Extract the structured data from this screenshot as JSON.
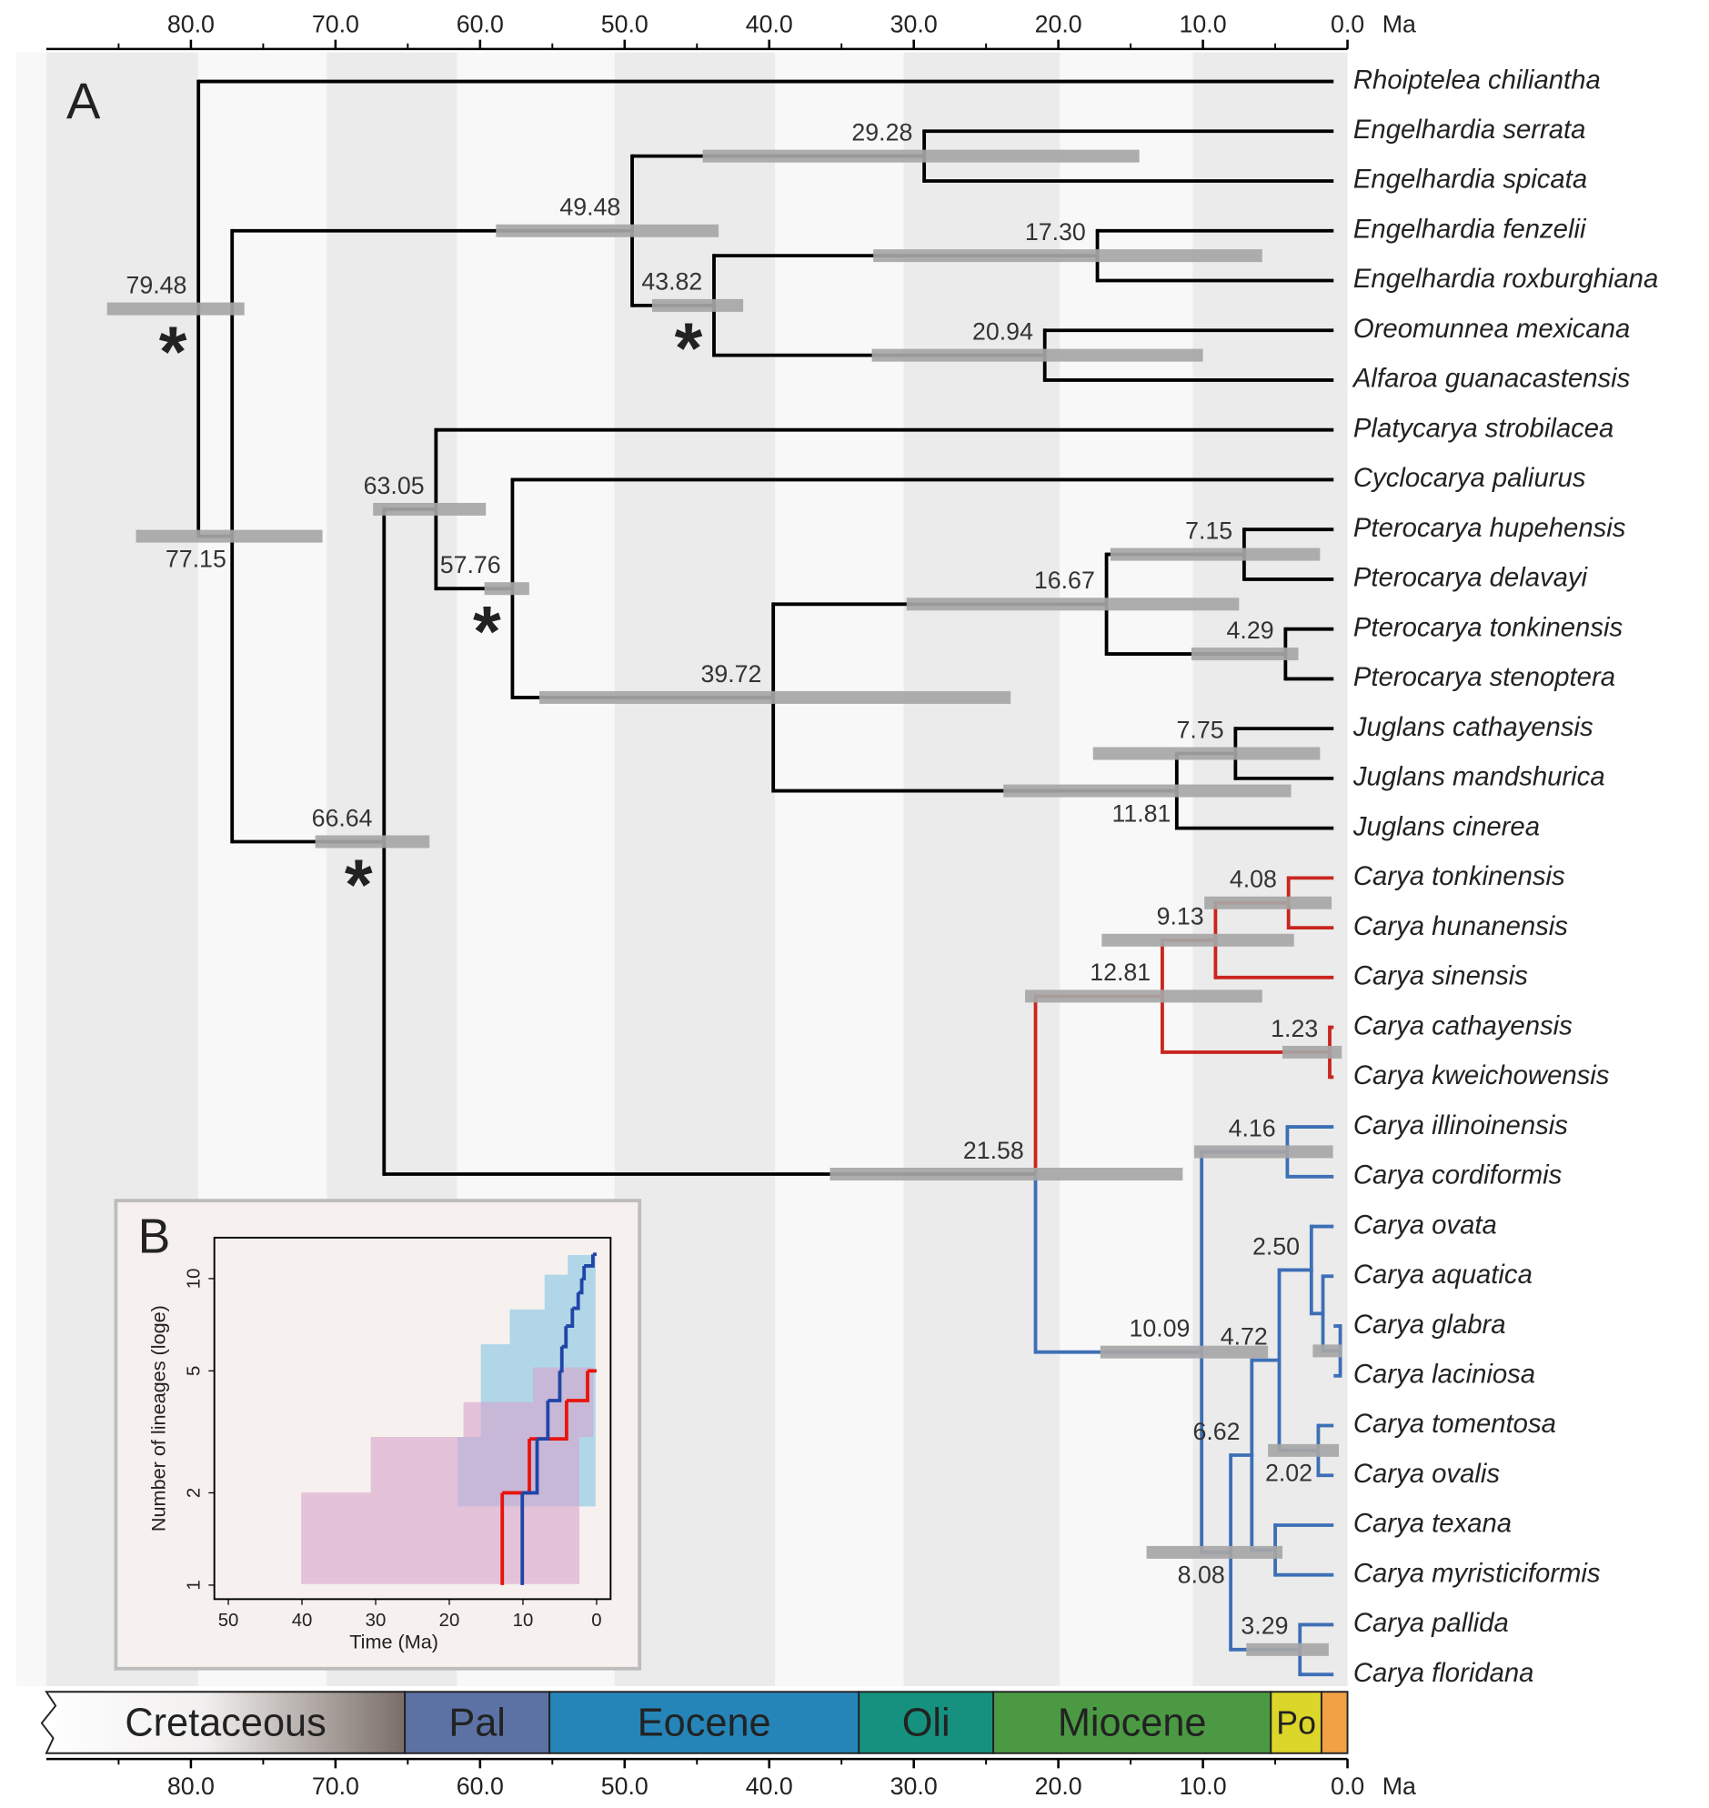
{
  "panel_a": {
    "label": "A",
    "time_axis": {
      "unit": "Ma",
      "xlim": [
        90,
        0
      ],
      "ticks": [
        {
          "value": 80,
          "label": "80.0"
        },
        {
          "value": 70,
          "label": "70.0"
        },
        {
          "value": 60,
          "label": "60.0"
        },
        {
          "value": 50,
          "label": "50.0"
        },
        {
          "value": 40,
          "label": "40.0"
        },
        {
          "value": 30,
          "label": "30.0"
        },
        {
          "value": 20,
          "label": "20.0"
        },
        {
          "value": 10,
          "label": "10.0"
        },
        {
          "value": 0,
          "label": "0.0"
        }
      ],
      "minor_ticks": [
        85,
        75,
        65,
        55,
        45,
        35,
        25,
        15,
        5
      ]
    },
    "bands": [
      [
        90,
        79.5
      ],
      [
        70.6,
        61.6
      ],
      [
        50.7,
        39.6
      ],
      [
        30.7,
        19.9
      ],
      [
        10.7,
        0
      ]
    ],
    "band_color": "#ebebeb",
    "hpd_color": "#a6a6a6",
    "periods": [
      {
        "name": "Cretaceous",
        "start": 90,
        "end": 65.2,
        "color": "#7a6e67"
      },
      {
        "name": "Pal",
        "start": 65.2,
        "end": 55.2,
        "color": "#5c72a4"
      },
      {
        "name": "Eocene",
        "start": 55.2,
        "end": 33.8,
        "color": "#2585b9"
      },
      {
        "name": "Oli",
        "start": 33.8,
        "end": 24.5,
        "color": "#16917f"
      },
      {
        "name": "Miocene",
        "start": 24.5,
        "end": 5.3,
        "color": "#4b9a43"
      },
      {
        "name": "Po",
        "start": 5.3,
        "end": 1.8,
        "color": "#dcd62a"
      },
      {
        "name": null,
        "start": 1.8,
        "end": 0,
        "color": "#f2a145"
      }
    ],
    "tree": {
      "age": 79.48,
      "label": "79.48",
      "hpd": [
        85.8,
        76.3
      ],
      "marker": "*",
      "color": "#000000",
      "children": [
        "Rhoiptelea chiliantha",
        {
          "age": 77.15,
          "label": "77.15",
          "hpd": [
            83.8,
            70.9
          ],
          "children": [
            {
              "age": 49.48,
              "label": "49.48",
              "hpd": [
                58.9,
                43.5
              ],
              "children": [
                {
                  "age": 29.28,
                  "label": "29.28",
                  "hpd": [
                    44.6,
                    14.4
                  ],
                  "children": [
                    "Engelhardia serrata",
                    "Engelhardia spicata"
                  ]
                },
                {
                  "age": 43.82,
                  "label": "43.82",
                  "hpd": [
                    48.1,
                    41.8
                  ],
                  "marker": "*",
                  "children": [
                    {
                      "age": 17.3,
                      "label": "17.30",
                      "hpd": [
                        32.8,
                        5.9
                      ],
                      "children": [
                        "Engelhardia fenzelii",
                        "Engelhardia roxburghiana"
                      ]
                    },
                    {
                      "age": 20.94,
                      "label": "20.94",
                      "hpd": [
                        32.9,
                        10.0
                      ],
                      "children": [
                        "Oreomunnea mexicana",
                        "Alfaroa guanacastensis"
                      ]
                    }
                  ]
                }
              ]
            },
            {
              "age": 66.64,
              "label": "66.64",
              "hpd": [
                71.4,
                63.5
              ],
              "marker": "*",
              "children": [
                {
                  "age": 63.05,
                  "label": "63.05",
                  "hpd": [
                    67.4,
                    59.6
                  ],
                  "children": [
                    "Platycarya strobilacea",
                    {
                      "age": 57.76,
                      "label": "57.76",
                      "hpd": [
                        59.7,
                        56.6
                      ],
                      "marker": "*",
                      "children": [
                        "Cyclocarya paliurus",
                        {
                          "age": 39.72,
                          "label": "39.72",
                          "hpd": [
                            55.9,
                            23.3
                          ],
                          "children": [
                            {
                              "age": 16.67,
                              "label": "16.67",
                              "hpd": [
                                30.5,
                                7.5
                              ],
                              "children": [
                                {
                                  "age": 7.15,
                                  "label": "7.15",
                                  "hpd": [
                                    16.4,
                                    1.9
                                  ],
                                  "children": [
                                    "Pterocarya hupehensis",
                                    "Pterocarya delavayi"
                                  ]
                                },
                                {
                                  "age": 4.29,
                                  "label": "4.29",
                                  "hpd": [
                                    10.8,
                                    3.4
                                  ],
                                  "children": [
                                    "Pterocarya tonkinensis",
                                    "Pterocarya stenoptera"
                                  ]
                                }
                              ]
                            },
                            {
                              "age": 11.81,
                              "label": "11.81",
                              "hpd": [
                                23.8,
                                3.9
                              ],
                              "children": [
                                {
                                  "age": 7.75,
                                  "label": "7.75",
                                  "hpd": [
                                    17.6,
                                    1.9
                                  ],
                                  "children": [
                                    "Juglans cathayensis",
                                    "Juglans mandshurica"
                                  ]
                                },
                                "Juglans cinerea"
                              ]
                            }
                          ]
                        }
                      ]
                    }
                  ]
                },
                {
                  "age": 21.58,
                  "label": "21.58",
                  "hpd": [
                    35.8,
                    11.4
                  ],
                  "children": [
                    {
                      "age": 12.81,
                      "label": "12.81",
                      "hpd": [
                        22.3,
                        5.9
                      ],
                      "color": "#c8261e",
                      "children": [
                        {
                          "age": 9.13,
                          "label": "9.13",
                          "hpd": [
                            17.0,
                            3.7
                          ],
                          "children": [
                            {
                              "age": 4.08,
                              "label": "4.08",
                              "hpd": [
                                9.9,
                                1.1
                              ],
                              "children": [
                                "Carya tonkinensis",
                                "Carya hunanensis"
                              ]
                            },
                            "Carya sinensis"
                          ]
                        },
                        {
                          "age": 1.23,
                          "label": "1.23",
                          "hpd": [
                            4.5,
                            0.4
                          ],
                          "children": [
                            "Carya cathayensis",
                            "Carya kweichowensis"
                          ]
                        }
                      ]
                    },
                    {
                      "age": 10.09,
                      "label": "10.09",
                      "hpd": [
                        17.1,
                        5.5
                      ],
                      "color": "#3d6fb6",
                      "children": [
                        {
                          "age": 4.16,
                          "label": "4.16",
                          "hpd": [
                            10.6,
                            1.0
                          ],
                          "children": [
                            "Carya illinoinensis",
                            "Carya cordiformis"
                          ]
                        },
                        {
                          "age": 8.08,
                          "label": "8.08",
                          "hpd": [
                            13.9,
                            4.5
                          ],
                          "children": [
                            {
                              "age": 6.62,
                              "label": "6.62",
                              "children": [
                                {
                                  "age": 4.72,
                                  "label": "4.72",
                                  "children": [
                                    {
                                      "age": 2.5,
                                      "label": "2.50",
                                      "children": [
                                        "Carya ovata",
                                        {
                                          "age": 1.7,
                                          "children": [
                                            "Carya aquatica",
                                            {
                                              "age": 0.5,
                                              "hpd": [
                                                2.4,
                                                0.4
                                              ],
                                              "children": [
                                                "Carya glabra",
                                                "Carya laciniosa"
                                              ]
                                            }
                                          ]
                                        }
                                      ]
                                    },
                                    {
                                      "age": 2.02,
                                      "label": "2.02",
                                      "hpd": [
                                        5.5,
                                        0.6
                                      ],
                                      "children": [
                                        "Carya tomentosa",
                                        "Carya ovalis"
                                      ]
                                    }
                                  ]
                                },
                                {
                                  "age": 5.0,
                                  "children": [
                                    "Carya texana",
                                    "Carya myristiciformis"
                                  ]
                                }
                              ]
                            },
                            {
                              "age": 3.29,
                              "label": "3.29",
                              "hpd": [
                                7.0,
                                1.3
                              ],
                              "children": [
                                "Carya pallida",
                                "Carya floridana"
                              ]
                            }
                          ]
                        }
                      ]
                    }
                  ]
                }
              ]
            }
          ]
        }
      ]
    }
  },
  "panel_b": {
    "label": "B",
    "xlabel": "Time (Ma)",
    "ylabel": "Number of lineages (loge)",
    "xlim": [
      51.9,
      -1.9
    ],
    "ylim": [
      0.9,
      13.6
    ],
    "log_y": true,
    "xticks": [
      50,
      40,
      30,
      20,
      10,
      0
    ],
    "yticks": [
      1,
      2,
      5,
      10
    ],
    "series": [
      {
        "color": "#e8140c",
        "times": [
          12.81,
          12.81,
          9.13,
          4.08,
          1.23,
          0
        ],
        "lineages": [
          1,
          2,
          3,
          4,
          5,
          5
        ]
      },
      {
        "color": "#1f45a8",
        "times": [
          10.09,
          10.09,
          8.08,
          6.62,
          5.0,
          4.72,
          4.16,
          3.29,
          2.5,
          2.02,
          1.7,
          0.5,
          0
        ],
        "lineages": [
          1,
          2,
          3,
          4,
          5,
          6,
          7,
          8,
          9,
          10,
          11,
          12,
          12
        ]
      }
    ]
  }
}
